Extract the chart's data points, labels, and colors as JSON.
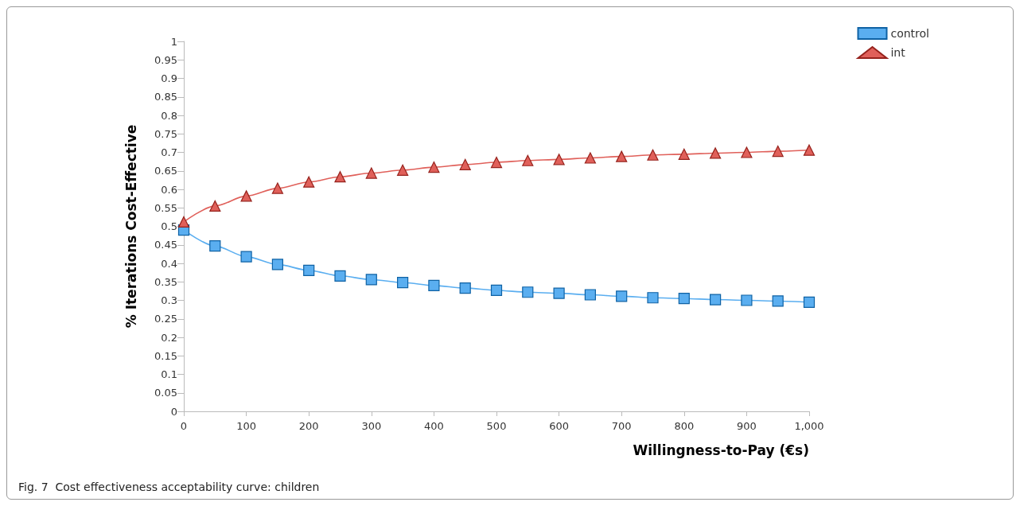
{
  "chart_data": {
    "type": "line",
    "xlabel": "Willingness-to-Pay (€s)",
    "ylabel": "% Iterations Cost-Effective",
    "annotations": [
      "Fig. 7  Cost effectiveness acceptability curve: children"
    ],
    "x": [
      0,
      50,
      100,
      150,
      200,
      250,
      300,
      350,
      400,
      450,
      500,
      550,
      600,
      650,
      700,
      750,
      800,
      850,
      900,
      950,
      1000
    ],
    "series": [
      {
        "name": "control",
        "color": "#5aaef0",
        "marker": "square",
        "values": [
          0.49,
          0.447,
          0.418,
          0.397,
          0.381,
          0.366,
          0.356,
          0.348,
          0.34,
          0.333,
          0.327,
          0.322,
          0.319,
          0.315,
          0.311,
          0.307,
          0.305,
          0.302,
          0.3,
          0.298,
          0.295
        ]
      },
      {
        "name": "int",
        "color": "#e0605a",
        "marker": "triangle",
        "values": [
          0.512,
          0.555,
          0.582,
          0.603,
          0.62,
          0.634,
          0.644,
          0.652,
          0.66,
          0.667,
          0.673,
          0.678,
          0.681,
          0.685,
          0.689,
          0.693,
          0.695,
          0.698,
          0.7,
          0.703,
          0.706
        ]
      }
    ],
    "xlim": [
      0,
      1000
    ],
    "xticks": [
      0,
      100,
      200,
      300,
      400,
      500,
      600,
      700,
      800,
      900,
      {
        "value": 1000,
        "label": "1,000"
      }
    ],
    "ylim": [
      0,
      1
    ],
    "yticks": [
      0,
      0.05,
      0.1,
      0.15,
      0.2,
      0.25,
      0.3,
      0.35,
      0.4,
      0.45,
      0.5,
      0.55,
      0.6,
      0.65,
      0.7,
      0.75,
      0.8,
      0.85,
      0.9,
      0.95,
      1
    ],
    "grid": false,
    "legend": "top right",
    "line_style": "solid"
  }
}
